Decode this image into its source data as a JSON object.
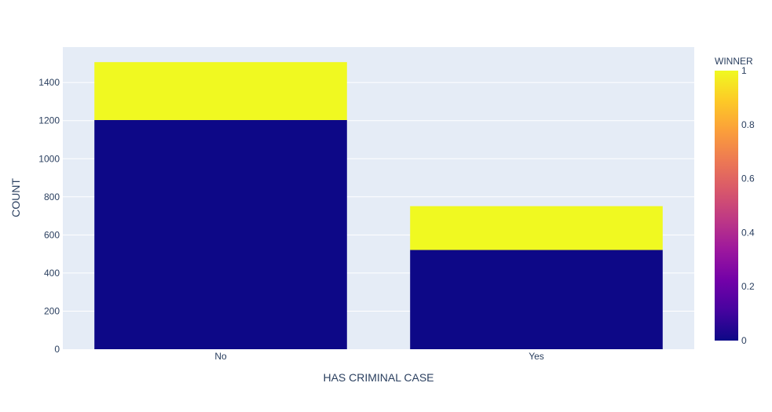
{
  "chart_data": {
    "type": "bar",
    "stacked": true,
    "categories": [
      "No",
      "Yes"
    ],
    "series": [
      {
        "winner": 0,
        "values": [
          1203,
          521
        ],
        "color": "#0d0887"
      },
      {
        "winner": 1,
        "values": [
          304,
          230
        ],
        "color": "#f0f921"
      }
    ],
    "xlabel": "HAS CRIMINAL CASE",
    "ylabel": "COUNT",
    "ylim": [
      0,
      1586
    ],
    "yticks": [
      0,
      200,
      400,
      600,
      800,
      1000,
      1200,
      1400
    ],
    "ytick_labels": [
      "0",
      "200",
      "400",
      "600",
      "800",
      "1000",
      "1200",
      "1400"
    ],
    "grid": true,
    "plot_bg": "#e5ecf6",
    "colorbar": {
      "title": "WINNER",
      "range": [
        0,
        1
      ],
      "ticks": [
        0,
        0.2,
        0.4,
        0.6,
        0.8,
        1
      ],
      "tick_labels": [
        "0",
        "0.2",
        "0.4",
        "0.6",
        "0.8",
        "1"
      ],
      "colorscale": [
        "#0d0887",
        "#46039f",
        "#7201a8",
        "#9c179e",
        "#bd3786",
        "#d8576b",
        "#ed7953",
        "#fb9f3a",
        "#fdca26",
        "#f0f921"
      ]
    }
  }
}
